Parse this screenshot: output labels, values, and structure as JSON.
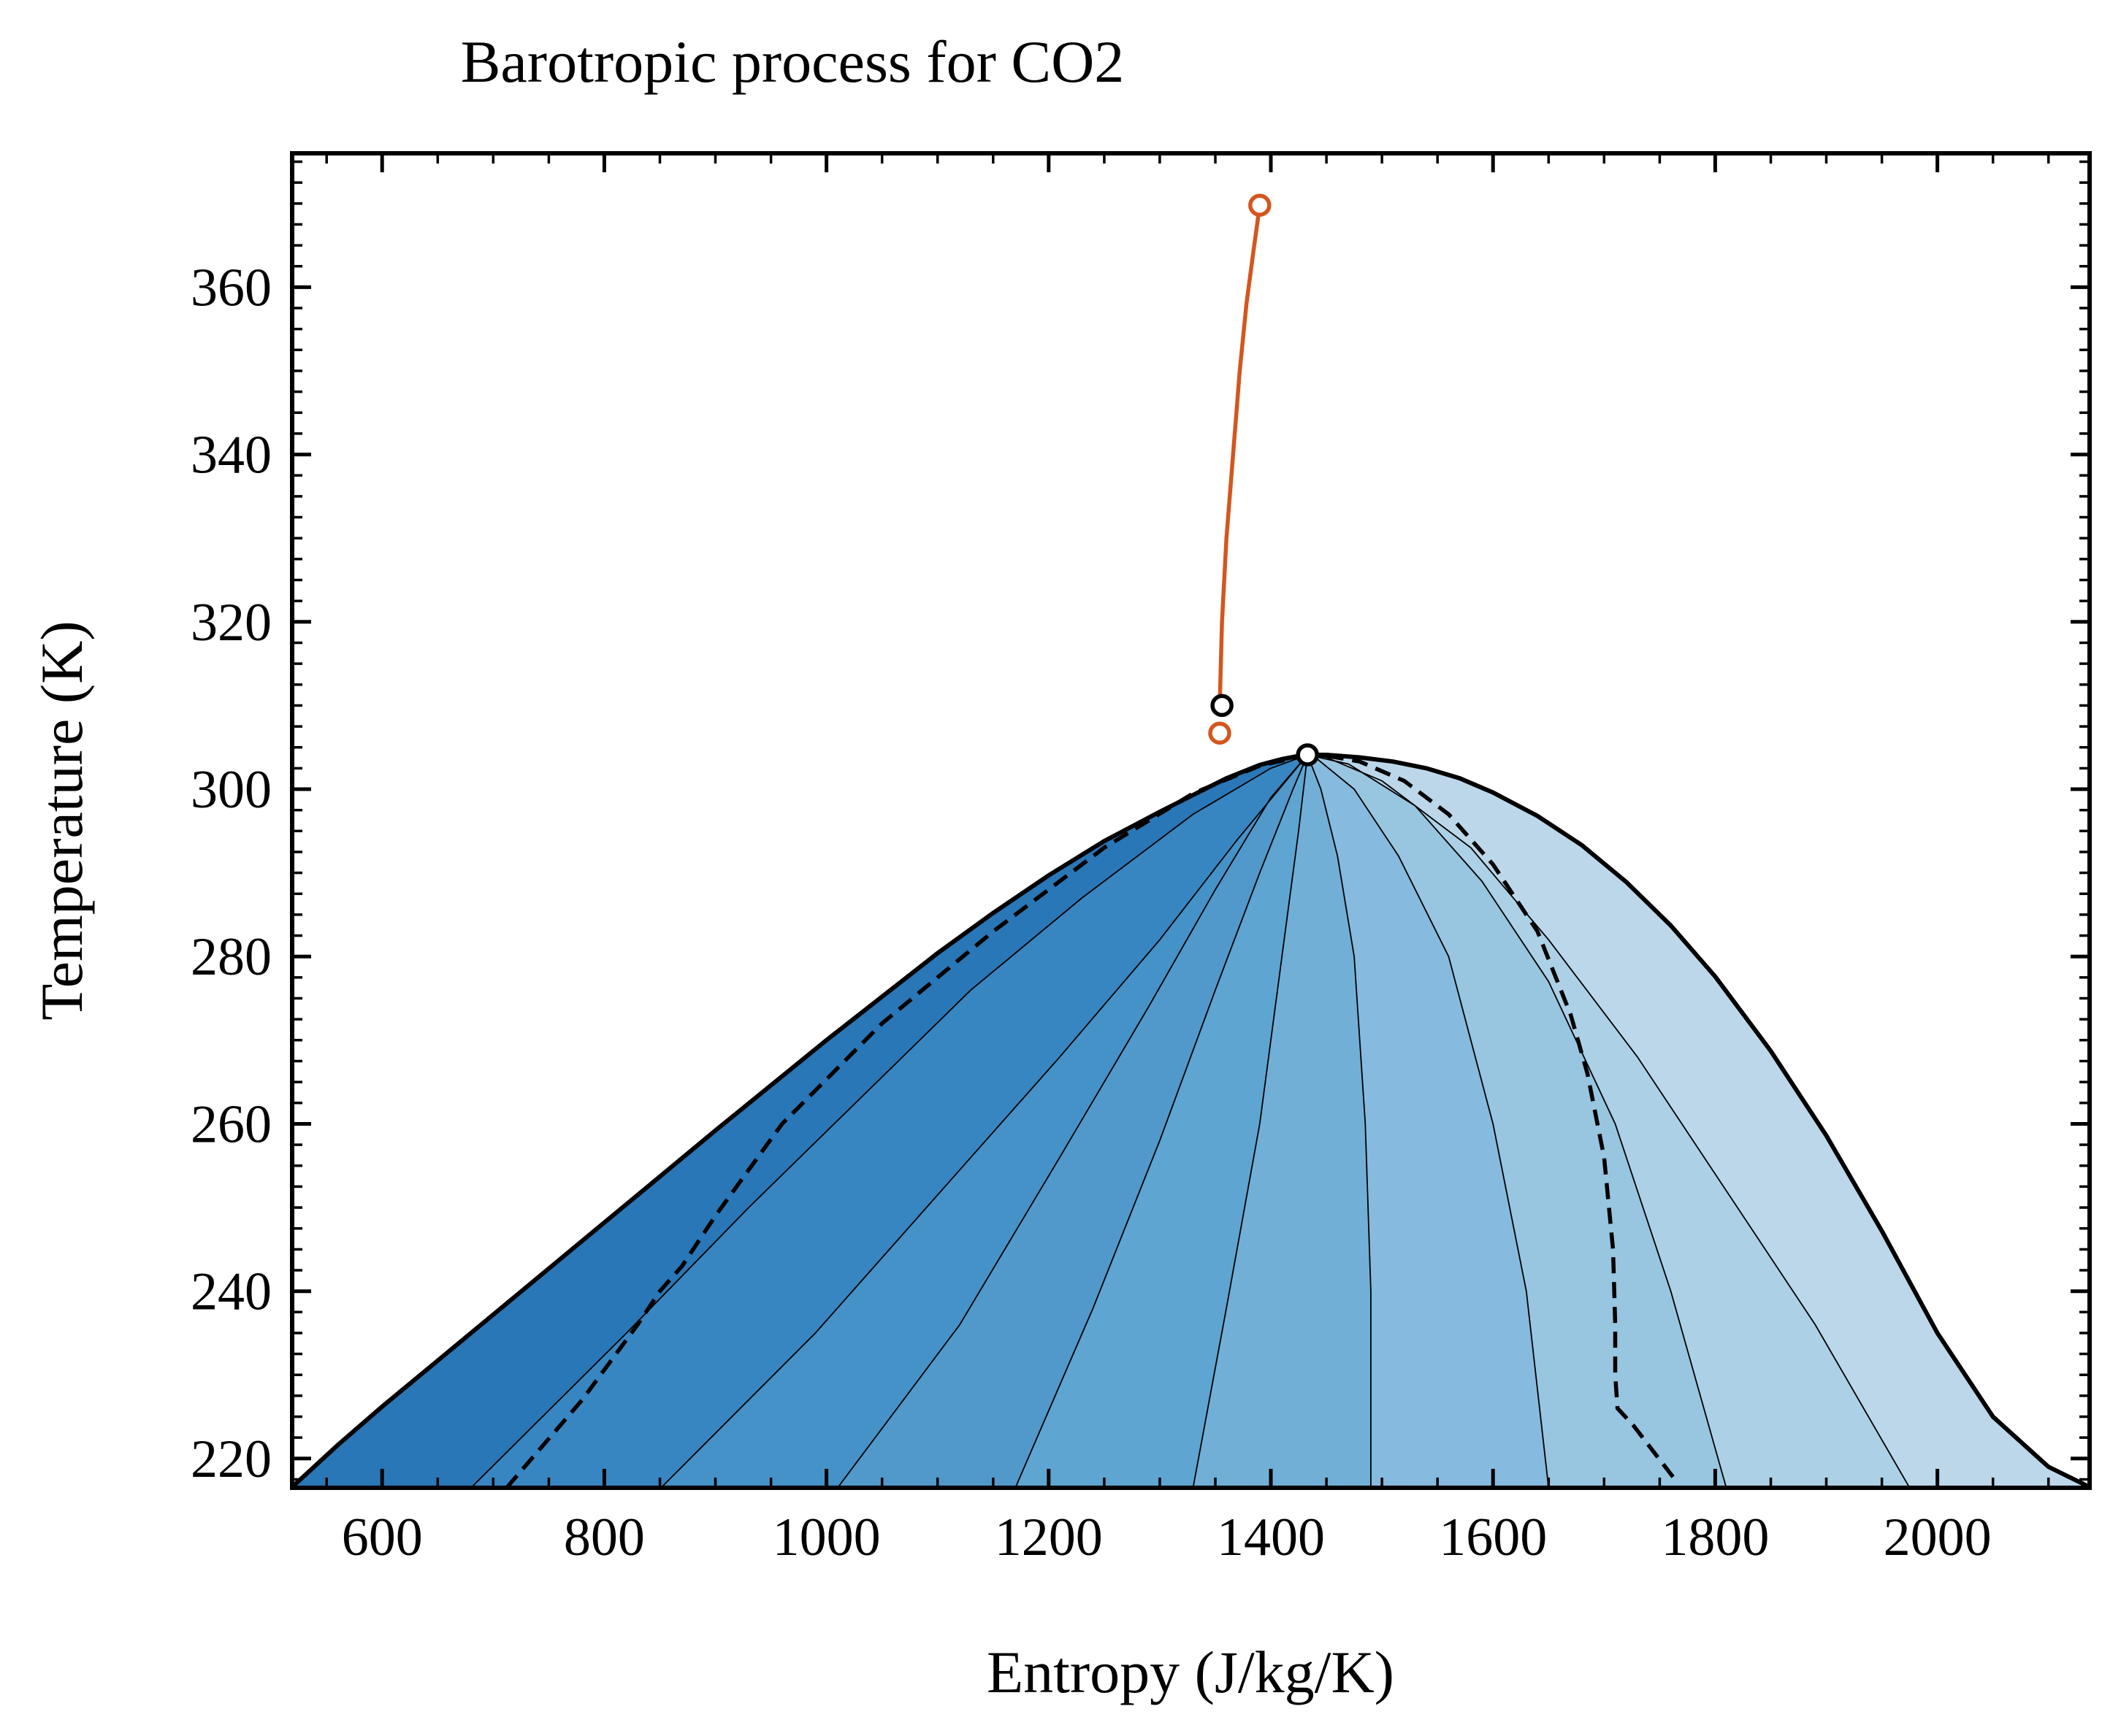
{
  "chart_data": {
    "type": "line",
    "title": "Barotropic process for CO2",
    "xlabel": "Entropy (J/kg/K)",
    "ylabel": "Temperature (K)",
    "xlim": [
      519,
      2137
    ],
    "ylim": [
      216.5,
      376
    ],
    "xticks": [
      600,
      800,
      1000,
      1200,
      1400,
      1600,
      1800,
      2000
    ],
    "yticks": [
      220,
      240,
      260,
      280,
      300,
      320,
      340,
      360
    ],
    "grid": false,
    "legend": "none",
    "colors": {
      "two_phase_fill": [
        "#2a77b7",
        "#3886c1",
        "#4592c8",
        "#5199cb",
        "#5ea5d1",
        "#71afd7",
        "#86bade",
        "#98c5e0",
        "#acd0e6",
        "#bcd7ea"
      ],
      "process": "#d4561e",
      "dome": "#000000"
    },
    "saturation_dome": {
      "x": [
        519,
        560,
        600,
        650,
        700,
        750,
        800,
        850,
        900,
        950,
        1000,
        1050,
        1100,
        1150,
        1200,
        1250,
        1300,
        1330,
        1360,
        1390,
        1410,
        1430,
        1450,
        1480,
        1510,
        1540,
        1570,
        1600,
        1640,
        1680,
        1720,
        1760,
        1800,
        1850,
        1900,
        1950,
        2000,
        2050,
        2100,
        2137
      ],
      "y": [
        216.6,
        221.6,
        226.2,
        231.7,
        237.2,
        242.7,
        248.2,
        253.7,
        259.2,
        264.6,
        270.0,
        275.2,
        280.4,
        285.2,
        289.7,
        293.8,
        297.3,
        299.3,
        301.3,
        302.9,
        303.6,
        304.1,
        304.1,
        303.8,
        303.3,
        302.5,
        301.3,
        299.6,
        296.8,
        293.3,
        288.9,
        283.7,
        277.6,
        268.7,
        258.6,
        247.2,
        235.0,
        225.0,
        219.0,
        216.6
      ]
    },
    "quality_lines": [
      {
        "x": [
          680,
          820,
          930,
          1030,
          1130,
          1230,
          1330,
          1400,
          1433
        ],
        "y": [
          216.5,
          235,
          250,
          263,
          276,
          287,
          297,
          302.5,
          304.1
        ]
      },
      {
        "x": [
          851,
          990,
          1110,
          1210,
          1300,
          1370,
          1420,
          1433
        ],
        "y": [
          216.5,
          235,
          253,
          268,
          282,
          294,
          302,
          304.1
        ]
      },
      {
        "x": [
          1010,
          1120,
          1210,
          1290,
          1350,
          1400,
          1433
        ],
        "y": [
          216.5,
          236,
          256,
          274,
          288,
          299,
          304.1
        ]
      },
      {
        "x": [
          1170,
          1240,
          1300,
          1350,
          1390,
          1420,
          1433
        ],
        "y": [
          216.5,
          238,
          258,
          276,
          290,
          300,
          304.1
        ]
      },
      {
        "x": [
          1330,
          1360,
          1390,
          1410,
          1425,
          1433
        ],
        "y": [
          216.5,
          238,
          260,
          280,
          295,
          304.1
        ]
      },
      {
        "x": [
          1490,
          1490,
          1485,
          1475,
          1460,
          1445,
          1433
        ],
        "y": [
          216.5,
          240,
          260,
          280,
          292,
          300,
          304.1
        ]
      },
      {
        "x": [
          1650,
          1630,
          1600,
          1560,
          1515,
          1475,
          1440,
          1433
        ],
        "y": [
          216.5,
          240,
          260,
          280,
          292,
          300,
          303.8,
          304.1
        ]
      },
      {
        "x": [
          1810,
          1760,
          1710,
          1650,
          1590,
          1530,
          1470,
          1433
        ],
        "y": [
          216.5,
          240,
          260,
          277,
          289,
          298,
          303,
          304.1
        ]
      },
      {
        "x": [
          1975,
          1890,
          1810,
          1730,
          1650,
          1580,
          1500,
          1450,
          1433
        ],
        "y": [
          216.5,
          236,
          252,
          268,
          282,
          293,
          301,
          303.8,
          304.1
        ]
      }
    ],
    "dashed_lines": [
      {
        "x": [
          712,
          780,
          830,
          850,
          870,
          900,
          960,
          1050,
          1150,
          1250,
          1330,
          1390,
          1433
        ],
        "y": [
          216.5,
          227,
          236,
          240,
          243,
          249,
          260,
          272,
          283,
          293,
          299.5,
          302.8,
          304.1
        ]
      },
      {
        "x": [
          1762,
          1726,
          1712,
          1710,
          1710,
          1708,
          1700,
          1685,
          1670,
          1640,
          1600,
          1560,
          1520,
          1480,
          1450,
          1433
        ],
        "y": [
          217.8,
          224,
          226,
          230,
          236,
          245,
          256,
          266,
          273,
          283,
          291,
          297,
          301,
          303.3,
          304,
          304.1
        ]
      }
    ],
    "process_line": {
      "x": [
        1354,
        1356,
        1360,
        1366,
        1372,
        1378,
        1384,
        1390
      ],
      "y": [
        310,
        320,
        330,
        340,
        350,
        358,
        364,
        369.8
      ]
    },
    "markers": [
      {
        "x": 1390,
        "y": 369.8,
        "color": "#d4561e",
        "fill": "#ffffff"
      },
      {
        "x": 1354,
        "y": 306.7,
        "color": "#d4561e",
        "fill": "#ffffff"
      },
      {
        "x": 1356,
        "y": 310,
        "color": "#000000",
        "fill": "#ffffff"
      },
      {
        "x": 1433,
        "y": 304.1,
        "color": "#000000",
        "fill": "#ffffff"
      }
    ]
  }
}
